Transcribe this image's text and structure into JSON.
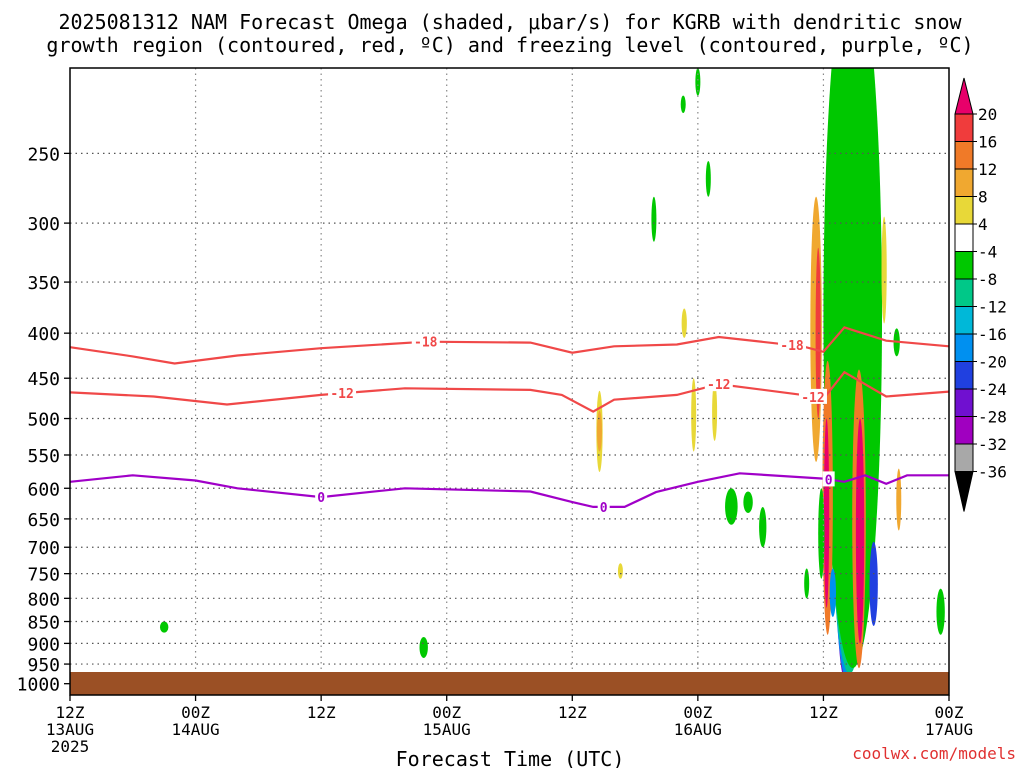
{
  "chart_data": {
    "type": "heatmap",
    "title_line1": "2025081312 NAM Forecast Omega (shaded, μbar/s) for KGRB with dendritic snow",
    "title_line2": "growth region (contoured, red, ºC) and freezing level (contoured, purple, ºC)",
    "xlabel": "Forecast Time (UTC)",
    "ylabel": "",
    "credit": "coolwx.com/models",
    "x_unit": "hours since 2025-08-13 12Z",
    "xlim": [
      0,
      84
    ],
    "y_scale": "log-pressure",
    "ylim": [
      1030,
      200
    ],
    "y_ticks": [
      250,
      300,
      350,
      400,
      450,
      500,
      550,
      600,
      650,
      700,
      750,
      800,
      850,
      900,
      950,
      1000
    ],
    "x_ticks": [
      {
        "h": 0,
        "l1": "12Z",
        "l2": "13AUG",
        "l3": "2025"
      },
      {
        "h": 12,
        "l1": "00Z",
        "l2": "14AUG",
        "l3": ""
      },
      {
        "h": 24,
        "l1": "12Z",
        "l2": "",
        "l3": ""
      },
      {
        "h": 36,
        "l1": "00Z",
        "l2": "15AUG",
        "l3": ""
      },
      {
        "h": 48,
        "l1": "12Z",
        "l2": "",
        "l3": ""
      },
      {
        "h": 60,
        "l1": "00Z",
        "l2": "16AUG",
        "l3": ""
      },
      {
        "h": 72,
        "l1": "12Z",
        "l2": "",
        "l3": ""
      },
      {
        "h": 84,
        "l1": "00Z",
        "l2": "17AUG",
        "l3": ""
      }
    ],
    "grid": true,
    "colorbar": {
      "labels": [
        "20",
        "16",
        "12",
        "8",
        "4",
        "-4",
        "-8",
        "-12",
        "-16",
        "-20",
        "-24",
        "-28",
        "-32",
        "-36"
      ],
      "colors": [
        "#e8006a",
        "#f03c3c",
        "#f07a28",
        "#f0a830",
        "#e8d838",
        "#ffffff",
        "#00c800",
        "#00c888",
        "#00b8d8",
        "#0090f0",
        "#2040e0",
        "#7010d0",
        "#a000c0",
        "#a8a8a8",
        "#000000"
      ]
    },
    "contours": [
      {
        "label": "-18",
        "color": "#f04848",
        "points": [
          [
            0,
            415
          ],
          [
            6,
            425
          ],
          [
            10,
            433
          ],
          [
            16,
            424
          ],
          [
            24,
            416
          ],
          [
            34,
            409
          ],
          [
            44,
            410
          ],
          [
            48,
            421
          ],
          [
            52,
            414
          ],
          [
            58,
            412
          ],
          [
            62,
            404
          ],
          [
            70,
            414
          ],
          [
            72,
            420
          ],
          [
            74,
            394
          ],
          [
            78,
            408
          ],
          [
            84,
            414
          ]
        ],
        "label_at": [
          34,
          69
        ]
      },
      {
        "label": "-12",
        "color": "#f04848",
        "points": [
          [
            0,
            467
          ],
          [
            8,
            472
          ],
          [
            15,
            482
          ],
          [
            24,
            470
          ],
          [
            32,
            462
          ],
          [
            44,
            464
          ],
          [
            47,
            470
          ],
          [
            50,
            491
          ],
          [
            52,
            476
          ],
          [
            58,
            470
          ],
          [
            62,
            457
          ],
          [
            70,
            470
          ],
          [
            72,
            475
          ],
          [
            74,
            443
          ],
          [
            78,
            472
          ],
          [
            84,
            466
          ]
        ],
        "label_at": [
          26,
          62,
          71
        ]
      },
      {
        "label": "0",
        "color": "#a000c8",
        "points": [
          [
            0,
            590
          ],
          [
            6,
            580
          ],
          [
            12,
            588
          ],
          [
            16,
            600
          ],
          [
            24,
            614
          ],
          [
            32,
            600
          ],
          [
            44,
            605
          ],
          [
            48,
            622
          ],
          [
            50,
            630
          ],
          [
            53,
            630
          ],
          [
            56,
            606
          ],
          [
            60,
            590
          ],
          [
            64,
            577
          ],
          [
            72,
            585
          ],
          [
            74,
            590
          ],
          [
            76,
            580
          ],
          [
            78,
            593
          ],
          [
            80,
            580
          ],
          [
            84,
            580
          ]
        ],
        "label_at": [
          24,
          51,
          72.5
        ]
      }
    ],
    "omega_cells": [
      {
        "h": 74.0,
        "w": 1.4,
        "p0": 230,
        "p1": 980,
        "v": -36
      },
      {
        "h": 74.0,
        "w": 2.3,
        "p0": 210,
        "p1": 985,
        "v": -28
      },
      {
        "h": 74.2,
        "w": 3.2,
        "p0": 190,
        "p1": 985,
        "v": -20
      },
      {
        "h": 74.5,
        "w": 4.4,
        "p0": 170,
        "p1": 975,
        "v": -12
      },
      {
        "h": 74.8,
        "w": 5.6,
        "p0": 150,
        "p1": 960,
        "v": -8
      },
      {
        "h": 71.3,
        "w": 1.1,
        "p0": 280,
        "p1": 560,
        "v": 8
      },
      {
        "h": 71.5,
        "w": 0.5,
        "p0": 320,
        "p1": 500,
        "v": 16
      },
      {
        "h": 72.4,
        "w": 1.0,
        "p0": 430,
        "p1": 880,
        "v": 12
      },
      {
        "h": 72.3,
        "w": 0.5,
        "p0": 500,
        "p1": 820,
        "v": 20
      },
      {
        "h": 75.4,
        "w": 1.3,
        "p0": 440,
        "p1": 960,
        "v": 12
      },
      {
        "h": 75.5,
        "w": 0.8,
        "p0": 500,
        "p1": 900,
        "v": 20
      },
      {
        "h": 76.8,
        "w": 0.8,
        "p0": 690,
        "p1": 860,
        "v": -24
      },
      {
        "h": 72.9,
        "w": 0.6,
        "p0": 740,
        "p1": 840,
        "v": -20
      },
      {
        "h": 71.8,
        "w": 0.6,
        "p0": 600,
        "p1": 760,
        "v": -8
      },
      {
        "h": 70.4,
        "w": 0.4,
        "p0": 740,
        "p1": 800,
        "v": -8
      },
      {
        "h": 79.2,
        "w": 0.4,
        "p0": 570,
        "p1": 670,
        "v": 8
      },
      {
        "h": 79.0,
        "w": 0.6,
        "p0": 395,
        "p1": 425,
        "v": -8
      },
      {
        "h": 77.8,
        "w": 0.5,
        "p0": 295,
        "p1": 390,
        "v": 4
      },
      {
        "h": 66.2,
        "w": 0.7,
        "p0": 630,
        "p1": 700,
        "v": -8
      },
      {
        "h": 64.8,
        "w": 0.9,
        "p0": 605,
        "p1": 640,
        "v": -8
      },
      {
        "h": 63.2,
        "w": 1.2,
        "p0": 600,
        "p1": 660,
        "v": -8
      },
      {
        "h": 61.6,
        "w": 0.4,
        "p0": 455,
        "p1": 530,
        "v": 4
      },
      {
        "h": 59.6,
        "w": 0.3,
        "p0": 450,
        "p1": 545,
        "v": 4
      },
      {
        "h": 58.7,
        "w": 0.5,
        "p0": 375,
        "p1": 405,
        "v": 4
      },
      {
        "h": 50.6,
        "w": 0.6,
        "p0": 465,
        "p1": 575,
        "v": 4
      },
      {
        "h": 50.6,
        "w": 0.3,
        "p0": 490,
        "p1": 545,
        "v": 8
      },
      {
        "h": 52.6,
        "w": 0.3,
        "p0": 730,
        "p1": 760,
        "v": 4
      },
      {
        "h": 58.6,
        "w": 0.3,
        "p0": 215,
        "p1": 225,
        "v": -8
      },
      {
        "h": 61.0,
        "w": 0.3,
        "p0": 255,
        "p1": 280,
        "v": -8
      },
      {
        "h": 60.0,
        "w": 0.2,
        "p0": 200,
        "p1": 215,
        "v": -8
      },
      {
        "h": 55.8,
        "w": 0.2,
        "p0": 280,
        "p1": 315,
        "v": -8
      },
      {
        "h": 83.2,
        "w": 0.8,
        "p0": 780,
        "p1": 880,
        "v": -8
      },
      {
        "h": 9.0,
        "w": 0.8,
        "p0": 850,
        "p1": 875,
        "v": -8
      },
      {
        "h": 33.8,
        "w": 0.8,
        "p0": 885,
        "p1": 935,
        "v": -8
      }
    ]
  }
}
